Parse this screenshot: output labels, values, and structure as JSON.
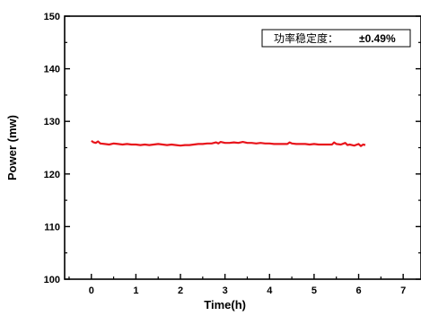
{
  "chart_data": {
    "type": "line",
    "title": "",
    "xlabel": "Time(h)",
    "ylabel": "Power (mw)",
    "xlim": [
      -0.6,
      7.4
    ],
    "ylim": [
      100,
      150
    ],
    "x_ticks": [
      "0",
      "1",
      "2",
      "3",
      "4",
      "5",
      "6",
      "7"
    ],
    "y_ticks": [
      "100",
      "110",
      "120",
      "130",
      "140",
      "150"
    ],
    "grid": false,
    "series_color": "#e8141b",
    "annotation": {
      "label": "功率稳定度：",
      "value": "±0.49%"
    },
    "series": [
      {
        "x": [
          0,
          0.05,
          0.1,
          0.15,
          0.2,
          0.3,
          0.4,
          0.5,
          0.6,
          0.7,
          0.8,
          0.9,
          1.0,
          1.1,
          1.2,
          1.3,
          1.4,
          1.5,
          1.6,
          1.7,
          1.8,
          1.9,
          2.0,
          2.1,
          2.2,
          2.3,
          2.4,
          2.5,
          2.6,
          2.7,
          2.8,
          2.85,
          2.9,
          3.0,
          3.1,
          3.2,
          3.3,
          3.4,
          3.5,
          3.6,
          3.7,
          3.8,
          3.9,
          4.0,
          4.1,
          4.2,
          4.3,
          4.4,
          4.45,
          4.5,
          4.6,
          4.7,
          4.8,
          4.9,
          5.0,
          5.1,
          5.2,
          5.3,
          5.4,
          5.45,
          5.5,
          5.6,
          5.7,
          5.75,
          5.8,
          5.9,
          6.0,
          6.05,
          6.1,
          6.15
        ],
        "y": [
          126.3,
          126.0,
          125.9,
          126.2,
          125.8,
          125.7,
          125.6,
          125.8,
          125.7,
          125.6,
          125.7,
          125.6,
          125.6,
          125.5,
          125.6,
          125.5,
          125.6,
          125.7,
          125.6,
          125.5,
          125.6,
          125.5,
          125.4,
          125.5,
          125.5,
          125.6,
          125.7,
          125.7,
          125.8,
          125.8,
          126.0,
          125.8,
          126.1,
          125.9,
          125.9,
          126.0,
          125.9,
          126.1,
          125.9,
          125.9,
          125.8,
          125.9,
          125.8,
          125.8,
          125.7,
          125.7,
          125.7,
          125.7,
          126.0,
          125.8,
          125.7,
          125.7,
          125.7,
          125.6,
          125.7,
          125.6,
          125.6,
          125.6,
          125.6,
          126.0,
          125.7,
          125.6,
          125.9,
          125.5,
          125.6,
          125.4,
          125.7,
          125.3,
          125.6,
          125.5
        ]
      }
    ]
  }
}
